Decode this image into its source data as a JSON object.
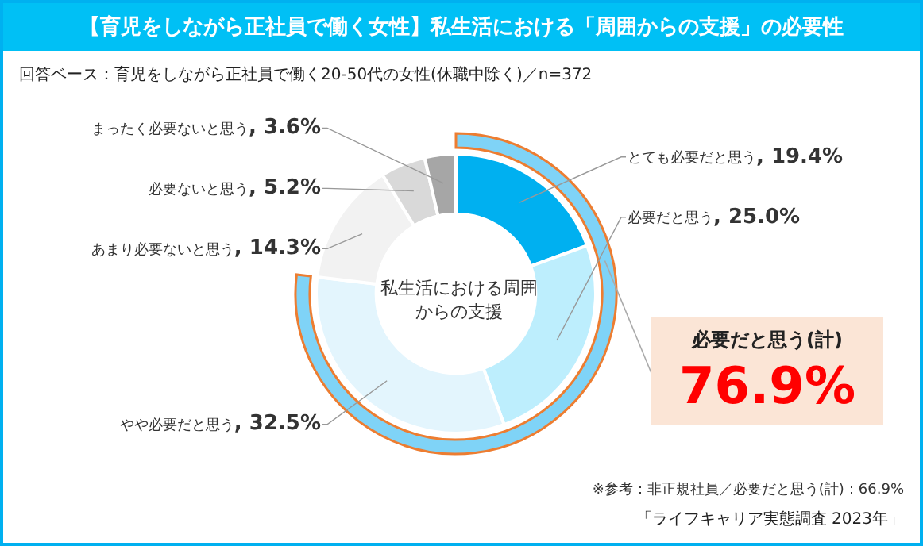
{
  "chart_data": {
    "type": "donut",
    "title": "【育児をしながら正社員で働く女性】私生活における「周囲からの支援」の必要性",
    "subtitle": "回答ベース：育児をしながら正社員で働く20-50代の女性(休職中除く)／n=372",
    "categories": [
      "とても必要だと思う",
      "必要だと思う",
      "やや必要だと思う",
      "あまり必要ないと思う",
      "必要ないと思う",
      "まったく必要ないと思う"
    ],
    "values": [
      19.4,
      25.0,
      32.5,
      14.3,
      5.2,
      3.6
    ],
    "value_labels": [
      ", 19.4%",
      ", 25.0%",
      ", 32.5%",
      ", 14.3%",
      ", 5.2%",
      ", 3.6%"
    ],
    "colors": [
      "#00b0f0",
      "#bdeefd",
      "#e3f5fd",
      "#f2f2f2",
      "#d9d9d9",
      "#a6a6a6"
    ],
    "legend": false,
    "annotations": [
      "私生活における周囲からの支援",
      "必要だと思う(計)",
      "76.9%",
      "※参考：非正規社員／必要だと思う(計)：66.9%",
      "「ライフキャリア実態調査 2023年」"
    ]
  }
}
